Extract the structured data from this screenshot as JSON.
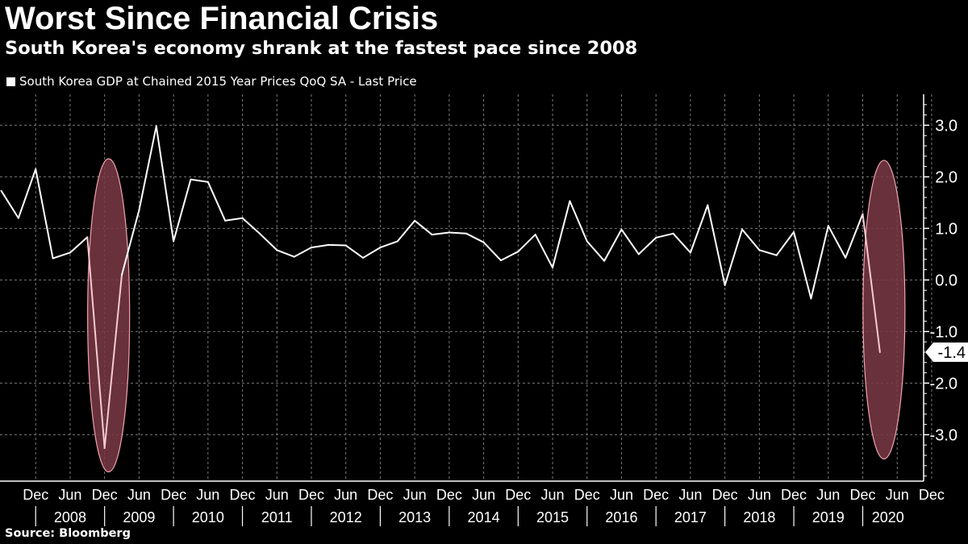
{
  "header": {
    "title": "Worst Since Financial Crisis",
    "subtitle": "South Korea's economy shrank at the fastest pace since 2008"
  },
  "legend": {
    "label": "South Korea GDP at Chained 2015 Year Prices QoQ SA - Last Price",
    "color": "#ffffff"
  },
  "footer": {
    "source": "Source: Bloomberg"
  },
  "colors": {
    "background": "#000000",
    "grid": "#7a7a7a",
    "line": "#ffffff",
    "highlight_fill": "#7a3a46",
    "highlight_stroke": "#f4a4b0",
    "highlight_line": "#f7c9d0"
  },
  "chart_data": {
    "type": "line",
    "title": "Worst Since Financial Crisis",
    "subtitle": "South Korea's economy shrank at the fastest pace since 2008",
    "xlabel": "",
    "ylabel": "",
    "y_axis_side": "right",
    "ylim": [
      -3.9,
      3.6
    ],
    "y_ticks": [
      3.0,
      2.0,
      1.0,
      0.0,
      -1.0,
      -2.0,
      -3.0
    ],
    "y_tick_labels": [
      "3.0",
      "2.0",
      "1.0",
      "0.0",
      "-1.0",
      "-2.0",
      "-3.0"
    ],
    "grid": true,
    "legend_position": "top-left",
    "x_tick_labels": [
      "Dec",
      "Jun",
      "Dec",
      "Jun",
      "Dec",
      "Jun",
      "Dec",
      "Jun",
      "Dec",
      "Jun",
      "Dec",
      "Jun",
      "Dec",
      "Jun",
      "Dec",
      "Jun",
      "Dec",
      "Jun",
      "Dec",
      "Jun",
      "Dec",
      "Jun",
      "Dec",
      "Jun",
      "Dec",
      "Jun",
      "Dec"
    ],
    "year_labels": [
      "2008",
      "2009",
      "2010",
      "2011",
      "2012",
      "2013",
      "2014",
      "2015",
      "2016",
      "2017",
      "2018",
      "2019",
      "2020"
    ],
    "last_value_label": "-1.4",
    "series": [
      {
        "name": "South Korea GDP at Chained 2015 Year Prices QoQ SA - Last Price",
        "x": [
          "2007-Q2",
          "2007-Q3",
          "2007-Q4",
          "2008-Q1",
          "2008-Q2",
          "2008-Q3",
          "2008-Q4",
          "2009-Q1",
          "2009-Q2",
          "2009-Q3",
          "2009-Q4",
          "2010-Q1",
          "2010-Q2",
          "2010-Q3",
          "2010-Q4",
          "2011-Q1",
          "2011-Q2",
          "2011-Q3",
          "2011-Q4",
          "2012-Q1",
          "2012-Q2",
          "2012-Q3",
          "2012-Q4",
          "2013-Q1",
          "2013-Q2",
          "2013-Q3",
          "2013-Q4",
          "2014-Q1",
          "2014-Q2",
          "2014-Q3",
          "2014-Q4",
          "2015-Q1",
          "2015-Q2",
          "2015-Q3",
          "2015-Q4",
          "2016-Q1",
          "2016-Q2",
          "2016-Q3",
          "2016-Q4",
          "2017-Q1",
          "2017-Q2",
          "2017-Q3",
          "2017-Q4",
          "2018-Q1",
          "2018-Q2",
          "2018-Q3",
          "2018-Q4",
          "2019-Q1",
          "2019-Q2",
          "2019-Q3",
          "2019-Q4",
          "2020-Q1"
        ],
        "values": [
          1.73,
          1.2,
          2.15,
          0.42,
          0.53,
          0.83,
          -3.26,
          0.1,
          1.35,
          2.98,
          0.75,
          1.95,
          1.9,
          1.15,
          1.2,
          0.9,
          0.58,
          0.45,
          0.63,
          0.68,
          0.67,
          0.43,
          0.63,
          0.75,
          1.15,
          0.88,
          0.92,
          0.9,
          0.73,
          0.38,
          0.55,
          0.88,
          0.24,
          1.53,
          0.75,
          0.37,
          0.98,
          0.5,
          0.82,
          0.9,
          0.53,
          1.45,
          -0.1,
          0.98,
          0.58,
          0.48,
          0.93,
          -0.36,
          1.05,
          0.43,
          1.28,
          -1.4
        ]
      }
    ],
    "annotations": [
      {
        "type": "ellipse-highlight",
        "around": "2008-Q4"
      },
      {
        "type": "ellipse-highlight",
        "around": "2020-Q1"
      }
    ]
  }
}
